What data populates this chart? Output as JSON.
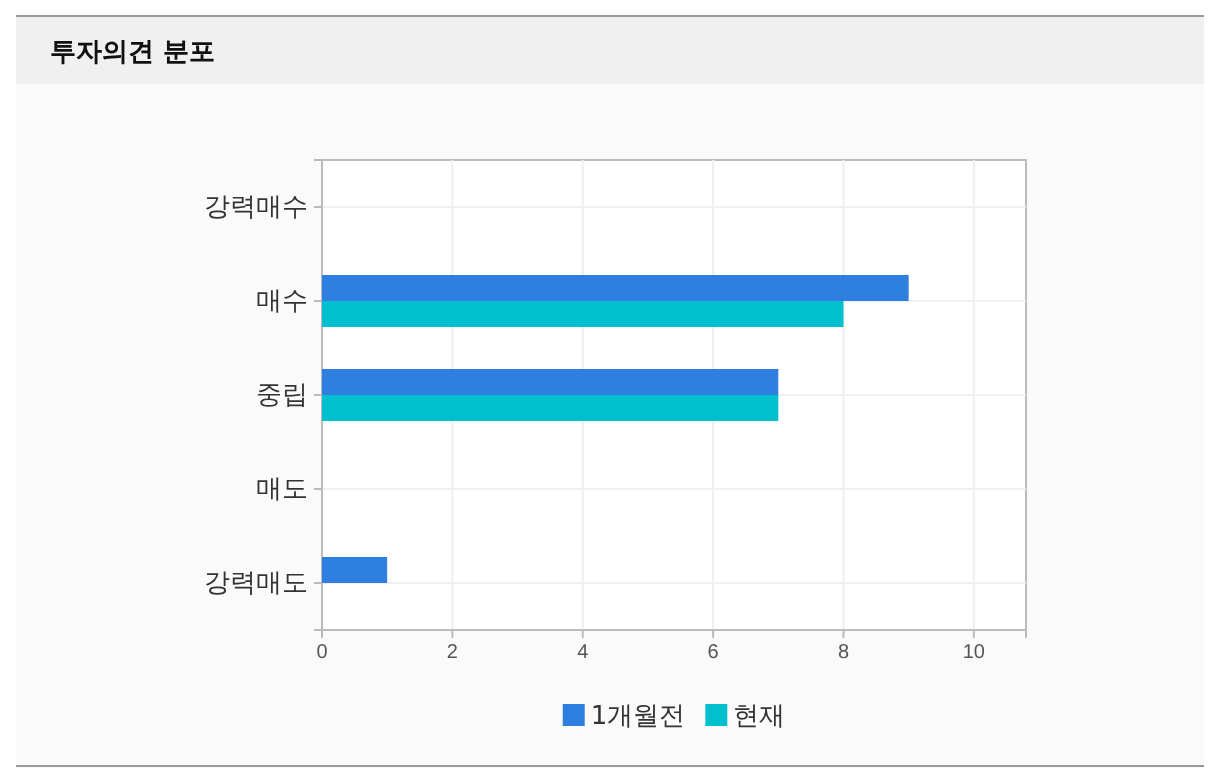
{
  "chart_data": {
    "type": "bar",
    "orientation": "horizontal",
    "title": "투자의견 분포",
    "categories": [
      "강력매수",
      "매수",
      "중립",
      "매도",
      "강력매도"
    ],
    "series": [
      {
        "name": "1개월전",
        "color": "#2f7fe0",
        "values": [
          0,
          9,
          7,
          0,
          1
        ]
      },
      {
        "name": "현재",
        "color": "#00bfcf",
        "values": [
          0,
          8,
          7,
          0,
          0
        ]
      }
    ],
    "xlim": [
      0,
      10.8
    ],
    "xticks": [
      0,
      2,
      4,
      6,
      8,
      10
    ],
    "grid": true,
    "legend": "bottom"
  }
}
